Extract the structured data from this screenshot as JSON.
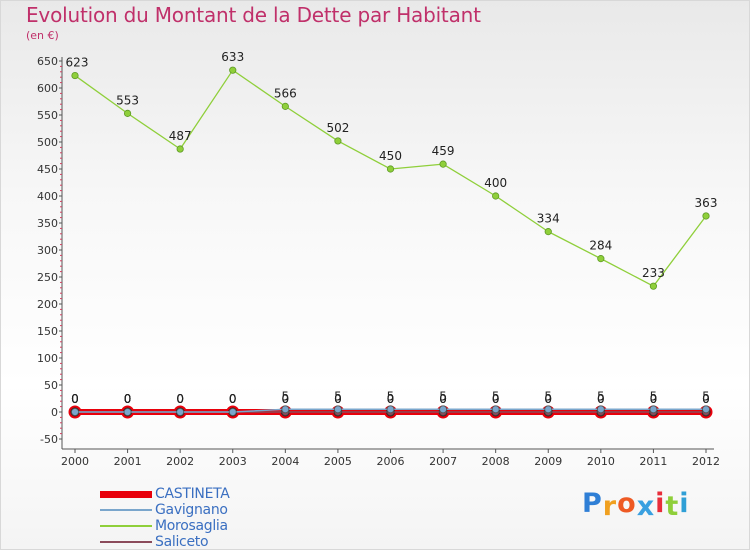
{
  "title": "Evolution du Montant de la Dette par Habitant",
  "subtitle": "(en €)",
  "logo": {
    "text": "Proxiti",
    "letter_colors": [
      "#2f7fd6",
      "#f0a020",
      "#ee5a24",
      "#39a0e0",
      "#e82d3a",
      "#8fcf3a",
      "#2f9fd6"
    ]
  },
  "chart_data": {
    "type": "line",
    "title": "Evolution du Montant de la Dette par Habitant",
    "subtitle": "(en €)",
    "xlabel": "",
    "ylabel": "",
    "ylim": [
      -50,
      650
    ],
    "yticks": [
      -50,
      0,
      50,
      100,
      150,
      200,
      250,
      300,
      350,
      400,
      450,
      500,
      550,
      600,
      650
    ],
    "x": [
      "2000",
      "2001",
      "2002",
      "2003",
      "2004",
      "2005",
      "2006",
      "2007",
      "2008",
      "2009",
      "2010",
      "2011",
      "2012"
    ],
    "grid": false,
    "legend_position": "bottom-left",
    "series": [
      {
        "name": "CASTINETA",
        "color": "#e8000b",
        "values": [
          0,
          0,
          0,
          0,
          0,
          0,
          0,
          0,
          0,
          0,
          0,
          0,
          0
        ],
        "labels": [
          "0",
          "0",
          "0",
          "0",
          "0",
          "0",
          "0",
          "0",
          "0",
          "0",
          "0",
          "0",
          "0"
        ]
      },
      {
        "name": "Gavignano",
        "color": "#7aa6cc",
        "values": [
          0,
          0,
          0,
          0,
          5,
          5,
          5,
          5,
          5,
          5,
          5,
          5,
          5
        ],
        "labels": [
          "0",
          "0",
          "0",
          "0",
          "5",
          "5",
          "5",
          "5",
          "5",
          "5",
          "5",
          "5",
          "5"
        ]
      },
      {
        "name": "Morosaglia",
        "color": "#8fcf3a",
        "values": [
          623,
          553,
          487,
          633,
          566,
          502,
          450,
          459,
          400,
          334,
          284,
          233,
          363
        ],
        "labels": [
          "623",
          "553",
          "487",
          "633",
          "566",
          "502",
          "450",
          "459",
          "400",
          "334",
          "284",
          "233",
          "363"
        ]
      },
      {
        "name": "Saliceto",
        "color": "#8a4a5a",
        "values": [
          0,
          0,
          0,
          0,
          0,
          0,
          0,
          0,
          0,
          0,
          0,
          0,
          0
        ],
        "labels": [
          "0",
          "0",
          "0",
          "0",
          "0",
          "0",
          "0",
          "0",
          "0",
          "0",
          "0",
          "0",
          "0"
        ]
      }
    ]
  }
}
